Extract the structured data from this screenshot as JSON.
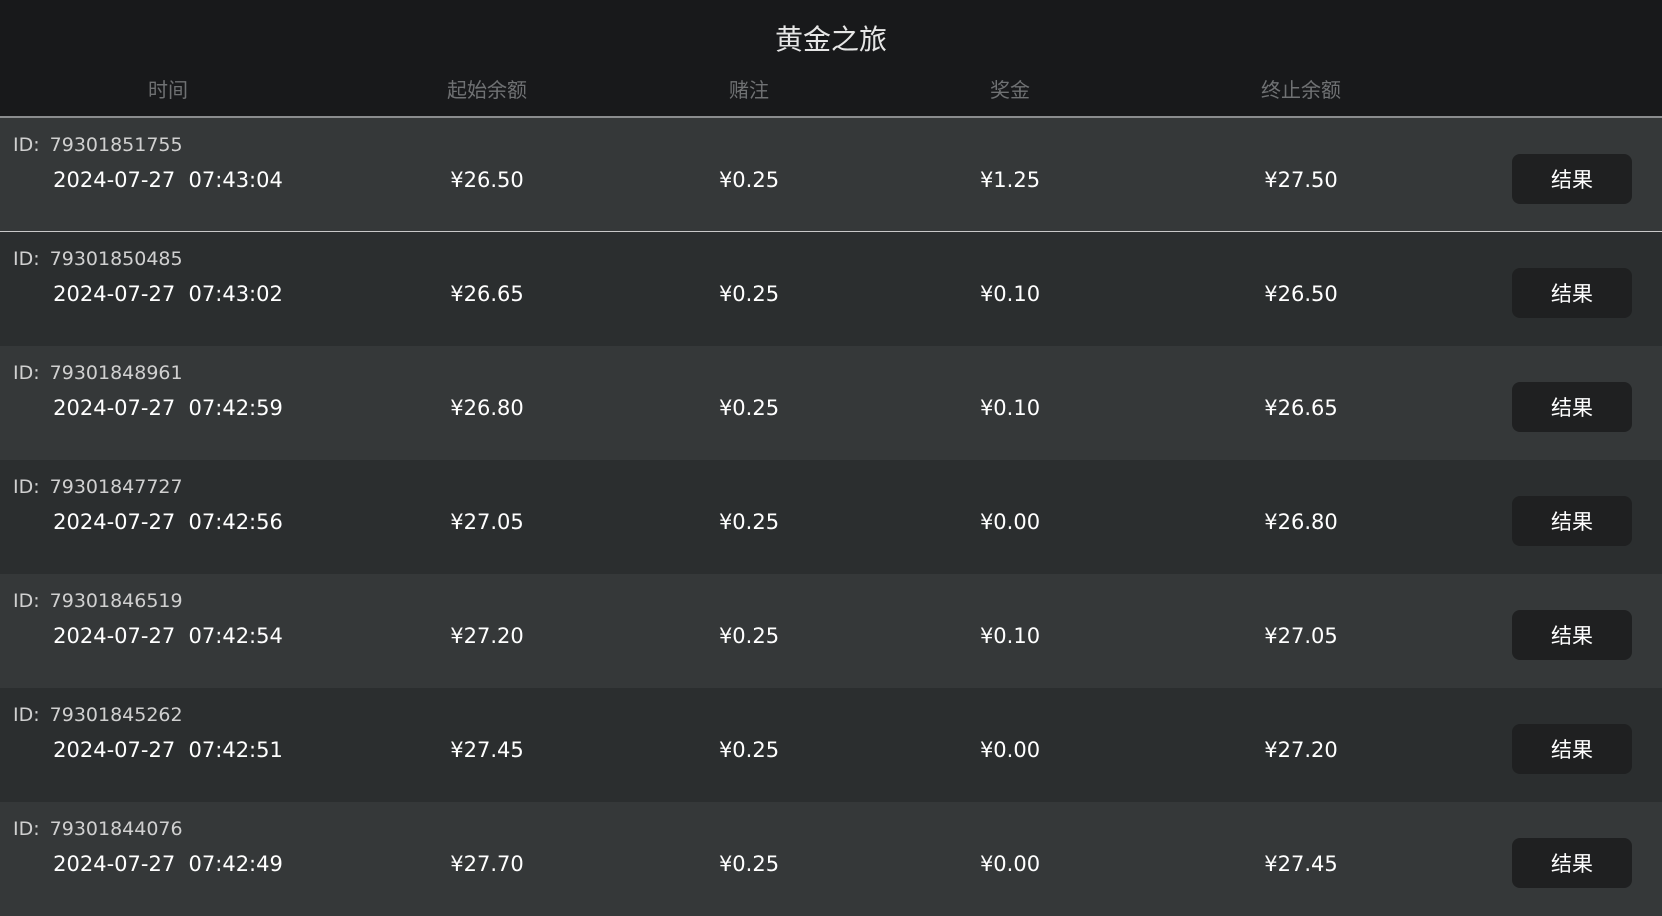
{
  "header": {
    "title": "黄金之旅",
    "columns": [
      "时间",
      "起始余额",
      "赌注",
      "奖金",
      "终止余额"
    ]
  },
  "id_label": "ID:",
  "result_label": "结果",
  "rows": [
    {
      "id": "79301851755",
      "time": "2024-07-27  07:43:04",
      "start": "¥26.50",
      "bet": "¥0.25",
      "win": "¥1.25",
      "end": "¥27.50"
    },
    {
      "id": "79301850485",
      "time": "2024-07-27  07:43:02",
      "start": "¥26.65",
      "bet": "¥0.25",
      "win": "¥0.10",
      "end": "¥26.50"
    },
    {
      "id": "79301848961",
      "time": "2024-07-27  07:42:59",
      "start": "¥26.80",
      "bet": "¥0.25",
      "win": "¥0.10",
      "end": "¥26.65"
    },
    {
      "id": "79301847727",
      "time": "2024-07-27  07:42:56",
      "start": "¥27.05",
      "bet": "¥0.25",
      "win": "¥0.00",
      "end": "¥26.80"
    },
    {
      "id": "79301846519",
      "time": "2024-07-27  07:42:54",
      "start": "¥27.20",
      "bet": "¥0.25",
      "win": "¥0.10",
      "end": "¥27.05"
    },
    {
      "id": "79301845262",
      "time": "2024-07-27  07:42:51",
      "start": "¥27.45",
      "bet": "¥0.25",
      "win": "¥0.00",
      "end": "¥27.20"
    },
    {
      "id": "79301844076",
      "time": "2024-07-27  07:42:49",
      "start": "¥27.70",
      "bet": "¥0.25",
      "win": "¥0.00",
      "end": "¥27.45"
    }
  ]
}
